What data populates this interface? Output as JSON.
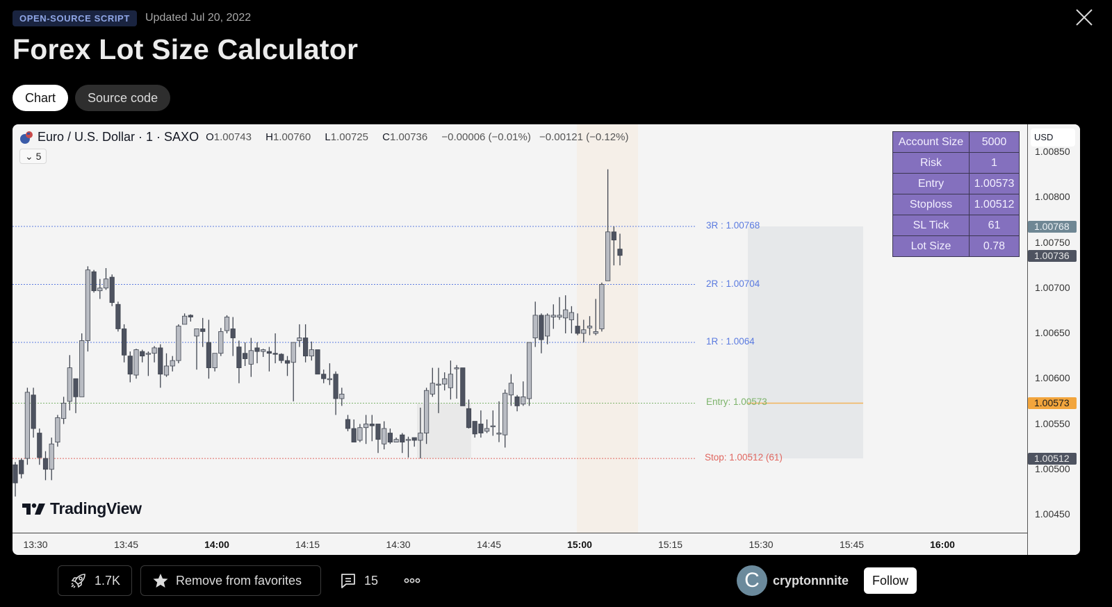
{
  "header": {
    "badge": "OPEN-SOURCE SCRIPT",
    "updated": "Updated Jul 20, 2022",
    "title": "Forex Lot Size Calculator",
    "close_icon": "close-icon"
  },
  "tabs": [
    {
      "label": "Chart",
      "active": true
    },
    {
      "label": "Source code",
      "active": false
    }
  ],
  "chart": {
    "symbol": "Euro / U.S. Dollar · 1 · SAXO",
    "ohlc": {
      "o_label": "O",
      "o": "1.00743",
      "h_label": "H",
      "h": "1.00760",
      "l_label": "L",
      "l": "1.00725",
      "c_label": "C",
      "c": "1.00736",
      "change": "−0.00006 (−0.01%)",
      "change2": "−0.00121 (−0.12%)"
    },
    "collapse_button": {
      "icon": "chevron-down-icon",
      "count": "5"
    },
    "currency": "USD",
    "watermark": "TradingView",
    "info_table": [
      {
        "key": "Account Size",
        "value": "5000"
      },
      {
        "key": "Risk",
        "value": "1"
      },
      {
        "key": "Entry",
        "value": "1.00573"
      },
      {
        "key": "Stoploss",
        "value": "1.00512"
      },
      {
        "key": "SL Tick",
        "value": "61"
      },
      {
        "key": "Lot Size",
        "value": "0.78"
      }
    ],
    "levels": [
      {
        "label": "3R : 1.00768",
        "price": 1.00768,
        "color": "#5b7be0"
      },
      {
        "label": "2R : 1.00704",
        "price": 1.00704,
        "color": "#5b7be0"
      },
      {
        "label": "1R : 1.0064",
        "price": 1.0064,
        "color": "#5b7be0"
      },
      {
        "label": "Entry: 1.00573",
        "price": 1.00573,
        "color": "#7cb36a"
      },
      {
        "label": "Stop: 1.00512 (61)",
        "price": 1.00512,
        "color": "#e0665f"
      }
    ],
    "price_ticks": [
      "1.00850",
      "1.00800",
      "1.00750",
      "1.00700",
      "1.00650",
      "1.00600",
      "1.00550",
      "1.00500",
      "1.00450"
    ],
    "price_labels": [
      {
        "value": "1.00768",
        "bg": "#6f8794",
        "fg": "#eef3f6"
      },
      {
        "value": "1.00736",
        "bg": "#4e5360",
        "fg": "#e8e8e8"
      },
      {
        "value": "1.00573",
        "bg": "#f2a53d",
        "fg": "#1a1a1a"
      },
      {
        "value": "1.00512",
        "bg": "#4e5360",
        "fg": "#e8e8e8"
      }
    ],
    "time_ticks": [
      {
        "label": "13:30",
        "bold": false
      },
      {
        "label": "13:45",
        "bold": false
      },
      {
        "label": "14:00",
        "bold": true
      },
      {
        "label": "14:15",
        "bold": false
      },
      {
        "label": "14:30",
        "bold": false
      },
      {
        "label": "14:45",
        "bold": false
      },
      {
        "label": "15:00",
        "bold": true
      },
      {
        "label": "15:15",
        "bold": false
      },
      {
        "label": "15:30",
        "bold": false
      },
      {
        "label": "15:45",
        "bold": false
      },
      {
        "label": "16:00",
        "bold": true
      }
    ],
    "colors": {
      "up": "#b9bcc3",
      "down": "#4e5360",
      "border": "#3f444f",
      "session_highlight": "#f5efe8",
      "box_fill": "#e6e8ea",
      "entry_line": "#f2b35a"
    }
  },
  "chart_data": {
    "type": "candlestick",
    "title": "Euro / U.S. Dollar · 1 · SAXO",
    "xlabel": "",
    "ylabel": "USD",
    "ylim": [
      1.0043,
      1.0088
    ],
    "x_ticks": [
      "13:30",
      "13:45",
      "14:00",
      "14:15",
      "14:30",
      "14:45",
      "15:00",
      "15:15",
      "15:30",
      "15:45",
      "16:00"
    ],
    "candles": [
      [
        1.00505,
        1.00508,
        1.0047,
        1.00485
      ],
      [
        1.0051,
        1.00512,
        1.0049,
        1.00495
      ],
      [
        1.00512,
        1.0059,
        1.00505,
        1.00585
      ],
      [
        1.00582,
        1.0059,
        1.00535,
        1.00545
      ],
      [
        1.0054,
        1.00545,
        1.00505,
        1.00513
      ],
      [
        1.00512,
        1.0052,
        1.00488,
        1.005
      ],
      [
        1.005,
        1.00535,
        1.00488,
        1.00528
      ],
      [
        1.0053,
        1.0056,
        1.00525,
        1.00557
      ],
      [
        1.00556,
        1.0058,
        1.0055,
        1.00573
      ],
      [
        1.00575,
        1.00626,
        1.00565,
        1.00612
      ],
      [
        1.006,
        1.006,
        1.00562,
        1.0058
      ],
      [
        1.0058,
        1.0065,
        1.0058,
        1.00642
      ],
      [
        1.00642,
        1.00724,
        1.0063,
        1.0072
      ],
      [
        1.00718,
        1.0072,
        1.00695,
        1.00697
      ],
      [
        1.00697,
        1.0071,
        1.00688,
        1.007
      ],
      [
        1.007,
        1.00722,
        1.00698,
        1.0071
      ],
      [
        1.00712,
        1.00715,
        1.0068,
        1.00684
      ],
      [
        1.00682,
        1.00685,
        1.00652,
        1.00655
      ],
      [
        1.00655,
        1.0066,
        1.00618,
        1.00626
      ],
      [
        1.00625,
        1.0063,
        1.00596,
        1.00605
      ],
      [
        1.00604,
        1.00633,
        1.006,
        1.00632
      ],
      [
        1.0063,
        1.00632,
        1.00618,
        1.00625
      ],
      [
        1.00628,
        1.0063,
        1.00603,
        1.00628
      ],
      [
        1.00628,
        1.00636,
        1.00618,
        1.00634
      ],
      [
        1.00634,
        1.00638,
        1.0059,
        1.00605
      ],
      [
        1.00604,
        1.00628,
        1.00602,
        1.00614
      ],
      [
        1.00614,
        1.00625,
        1.00608,
        1.0062
      ],
      [
        1.0062,
        1.0066,
        1.00617,
        1.00658
      ],
      [
        1.0066,
        1.00672,
        1.0066,
        1.00669
      ],
      [
        1.0067,
        1.00671,
        1.00663,
        1.00668
      ],
      [
        1.00647,
        1.0065,
        1.0061,
        1.00655
      ],
      [
        1.00655,
        1.00667,
        1.00635,
        1.00652
      ],
      [
        1.0064,
        1.00665,
        1.006,
        1.00612
      ],
      [
        1.00612,
        1.00628,
        1.00608,
        1.00628
      ],
      [
        1.00628,
        1.00656,
        1.00625,
        1.00652
      ],
      [
        1.00653,
        1.0067,
        1.0065,
        1.00668
      ],
      [
        1.00655,
        1.00668,
        1.00625,
        1.00645
      ],
      [
        1.00635,
        1.00642,
        1.00595,
        1.00612
      ],
      [
        1.00628,
        1.0064,
        1.00614,
        1.00622
      ],
      [
        1.00616,
        1.00645,
        1.00602,
        1.00631
      ],
      [
        1.00634,
        1.0064,
        1.00617,
        1.0063
      ],
      [
        1.0063,
        1.00633,
        1.00624,
        1.00632
      ],
      [
        1.0063,
        1.00635,
        1.00608,
        1.00628
      ],
      [
        1.00628,
        1.0065,
        1.00617,
        1.00627
      ],
      [
        1.00627,
        1.00628,
        1.00617,
        1.0062
      ],
      [
        1.0062,
        1.00625,
        1.00603,
        1.00617
      ],
      [
        1.00618,
        1.00635,
        1.00575,
        1.0064
      ],
      [
        1.00642,
        1.0066,
        1.00635,
        1.00645
      ],
      [
        1.00645,
        1.0066,
        1.00618,
        1.00625
      ],
      [
        1.00625,
        1.00641,
        1.0062,
        1.00632
      ],
      [
        1.00632,
        1.00632,
        1.00605,
        1.00605
      ],
      [
        1.00605,
        1.0061,
        1.00595,
        1.006
      ],
      [
        1.006,
        1.00617,
        1.00593,
        1.006
      ],
      [
        1.00605,
        1.00608,
        1.0056,
        1.00578
      ],
      [
        1.00578,
        1.0059,
        1.0057,
        1.00583
      ],
      [
        1.00555,
        1.0056,
        1.00542,
        1.00545
      ],
      [
        1.00545,
        1.00555,
        1.0053,
        1.0053
      ],
      [
        1.00532,
        1.0055,
        1.0053,
        1.00546
      ],
      [
        1.00546,
        1.0056,
        1.00528,
        1.0055
      ],
      [
        1.0055,
        1.0056,
        1.00531,
        1.00548
      ],
      [
        1.0055,
        1.0055,
        1.00518,
        1.00533
      ],
      [
        1.00528,
        1.00553,
        1.00522,
        1.00545
      ],
      [
        1.0054,
        1.00545,
        1.00528,
        1.0053
      ],
      [
        1.0053,
        1.00535,
        1.0053,
        1.00533
      ],
      [
        1.00538,
        1.0054,
        1.00518,
        1.0053
      ],
      [
        1.00532,
        1.00536,
        1.00513,
        1.00533
      ],
      [
        1.00535,
        1.00535,
        1.00525,
        1.00532
      ],
      [
        1.00532,
        1.00568,
        1.00512,
        1.0054
      ],
      [
        1.0054,
        1.0059,
        1.00528,
        1.00587
      ],
      [
        1.00583,
        1.00612,
        1.0058,
        1.00595
      ],
      [
        1.00593,
        1.00612,
        1.00562,
        1.00594
      ],
      [
        1.00594,
        1.00607,
        1.00587,
        1.006
      ],
      [
        1.0059,
        1.0062,
        1.00577,
        1.00605
      ],
      [
        1.00612,
        1.00615,
        1.00578,
        1.00612
      ],
      [
        1.00612,
        1.00612,
        1.0057,
        1.0057
      ],
      [
        1.00567,
        1.00577,
        1.00545,
        1.00546
      ],
      [
        1.00553,
        1.00553,
        1.00535,
        1.00539
      ],
      [
        1.0055,
        1.00565,
        1.00535,
        1.0054
      ],
      [
        1.00542,
        1.00555,
        1.0054,
        1.00545
      ],
      [
        1.00548,
        1.00565,
        1.00537,
        1.00548
      ],
      [
        1.0054,
        1.00575,
        1.0053,
        1.0054
      ],
      [
        1.00538,
        1.00588,
        1.00524,
        1.00584
      ],
      [
        1.00582,
        1.00605,
        1.0057,
        1.00595
      ],
      [
        1.0058,
        1.00582,
        1.00564,
        1.0057
      ],
      [
        1.00572,
        1.00597,
        1.0057,
        1.0058
      ],
      [
        1.00578,
        1.0063,
        1.0057,
        1.0064
      ],
      [
        1.00645,
        1.00685,
        1.00635,
        1.0067
      ],
      [
        1.0067,
        1.00672,
        1.00628,
        1.00643
      ],
      [
        1.00647,
        1.00672,
        1.00638,
        1.0067
      ],
      [
        1.00668,
        1.00682,
        1.00655,
        1.0067
      ],
      [
        1.00668,
        1.0069,
        1.00665,
        1.0067
      ],
      [
        1.00667,
        1.00692,
        1.0065,
        1.00676
      ],
      [
        1.00665,
        1.0068,
        1.0065,
        1.00673
      ],
      [
        1.00658,
        1.00672,
        1.00648,
        1.0065
      ],
      [
        1.0065,
        1.00665,
        1.0064,
        1.00654
      ],
      [
        1.00656,
        1.00669,
        1.00648,
        1.00658
      ],
      [
        1.0065,
        1.00688,
        1.00648,
        1.00652
      ],
      [
        1.00655,
        1.00706,
        1.00652,
        1.00704
      ],
      [
        1.00708,
        1.00831,
        1.00708,
        1.00762
      ],
      [
        1.00762,
        1.00768,
        1.00725,
        1.00753
      ],
      [
        1.00743,
        1.0076,
        1.00725,
        1.00736
      ]
    ]
  },
  "footer": {
    "boost": {
      "icon": "rocket-icon",
      "count": "1.7K"
    },
    "favorite": {
      "icon": "star-icon",
      "label": "Remove from favorites"
    },
    "comments": {
      "icon": "comment-icon",
      "count": "15"
    },
    "more": {
      "icon": "more-icon"
    },
    "author": {
      "initial": "C",
      "name": "cryptonnnite",
      "follow_label": "Follow"
    }
  }
}
